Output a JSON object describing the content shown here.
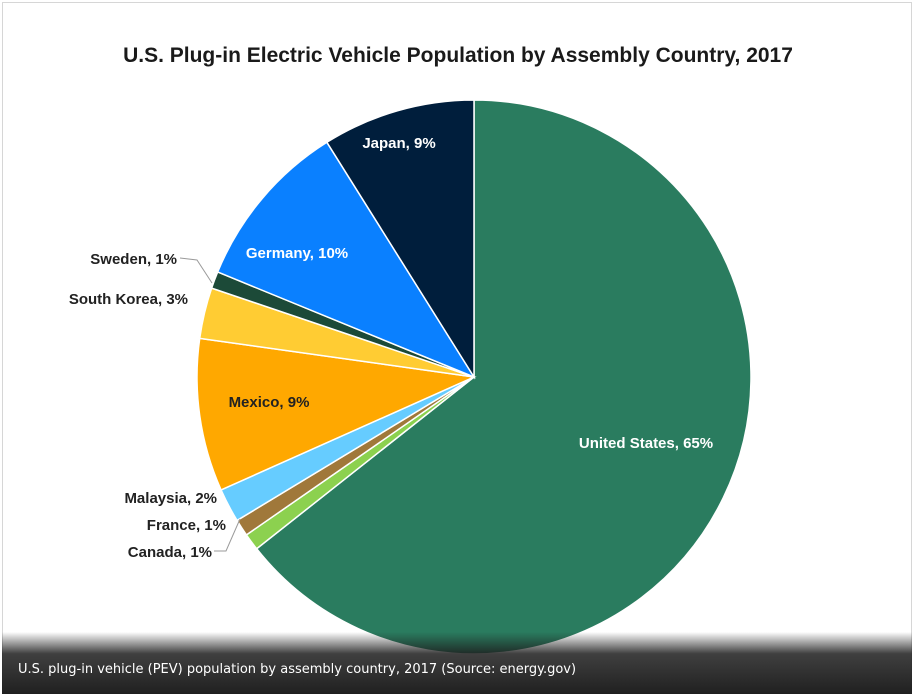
{
  "chart_data": {
    "type": "pie",
    "title": "U.S. Plug-in Electric Vehicle Population by Assembly Country, 2017",
    "slices": [
      {
        "label": "United States, 65%",
        "name": "United States",
        "value": 65,
        "color": "#2a7c5f",
        "label_color": "#ffffff"
      },
      {
        "label": "Canada, 1%",
        "name": "Canada",
        "value": 1,
        "color": "#8cd14f",
        "label_color": "#222222"
      },
      {
        "label": "France, 1%",
        "name": "France",
        "value": 1,
        "color": "#a0783a",
        "label_color": "#222222"
      },
      {
        "label": "Malaysia, 2%",
        "name": "Malaysia",
        "value": 2,
        "color": "#66ccff",
        "label_color": "#222222"
      },
      {
        "label": "Mexico, 9%",
        "name": "Mexico",
        "value": 9,
        "color": "#ffa800",
        "label_color": "#222222"
      },
      {
        "label": "South Korea, 3%",
        "name": "South Korea",
        "value": 3,
        "color": "#ffcc33",
        "label_color": "#222222"
      },
      {
        "label": "Sweden, 1%",
        "name": "Sweden",
        "value": 1,
        "color": "#1c4a38",
        "label_color": "#222222"
      },
      {
        "label": "Germany, 10%",
        "name": "Germany",
        "value": 10,
        "color": "#0a80ff",
        "label_color": "#ffffff"
      },
      {
        "label": "Japan, 9%",
        "name": "Japan",
        "value": 9,
        "color": "#001e3c",
        "label_color": "#ffffff"
      }
    ]
  },
  "caption": "U.S. plug-in vehicle (PEV) population by assembly country, 2017 (Source: energy.gov)"
}
